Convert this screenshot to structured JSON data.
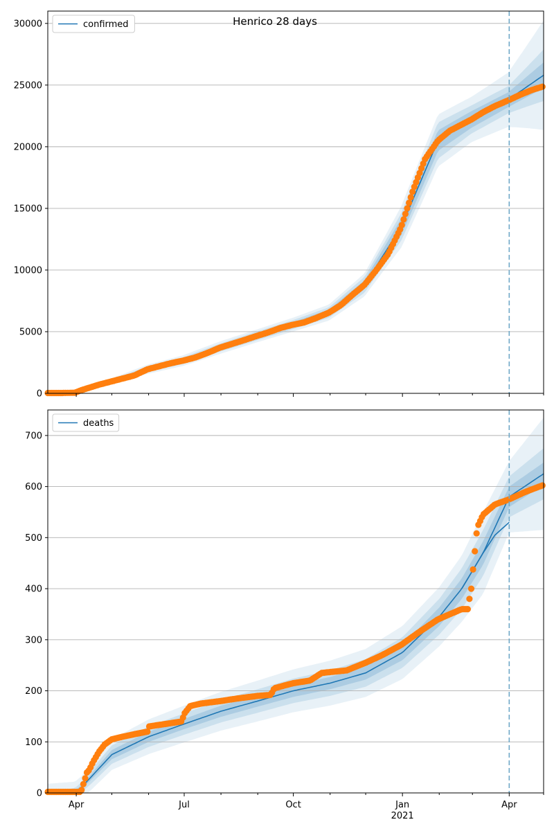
{
  "chart_data": [
    {
      "type": "line",
      "title": "Henrico 28 days",
      "legend": {
        "label": "confirmed",
        "placement": "top-left"
      },
      "xlabel": "",
      "ylabel": "",
      "x_range": [
        "2020-03-08",
        "2021-04-30"
      ],
      "ylim": [
        0,
        31000
      ],
      "yticks": [
        0,
        5000,
        10000,
        15000,
        20000,
        25000,
        30000
      ],
      "grid": "horizontal",
      "forecast_start": "2021-04-01",
      "colors": {
        "model": "#1f77b4",
        "observed": "#ff7f0e",
        "band": "#1f77b4"
      },
      "observed": {
        "dates": [
          "2020-03-08",
          "2020-03-20",
          "2020-03-31",
          "2020-04-05",
          "2020-04-10",
          "2020-04-15",
          "2020-04-20",
          "2020-04-30",
          "2020-05-10",
          "2020-05-20",
          "2020-05-31",
          "2020-06-10",
          "2020-06-20",
          "2020-06-30",
          "2020-07-10",
          "2020-07-20",
          "2020-07-31",
          "2020-08-10",
          "2020-08-20",
          "2020-08-31",
          "2020-09-10",
          "2020-09-20",
          "2020-09-30",
          "2020-10-10",
          "2020-10-20",
          "2020-10-31",
          "2020-11-10",
          "2020-11-20",
          "2020-11-30",
          "2020-12-10",
          "2020-12-20",
          "2020-12-31",
          "2021-01-10",
          "2021-01-20",
          "2021-01-31",
          "2021-02-10",
          "2021-02-20",
          "2021-02-28",
          "2021-03-10",
          "2021-03-20",
          "2021-03-31",
          "2021-04-10",
          "2021-04-20",
          "2021-04-30"
        ],
        "values": [
          30,
          30,
          50,
          250,
          400,
          550,
          700,
          950,
          1200,
          1450,
          1950,
          2200,
          2450,
          2650,
          2900,
          3250,
          3700,
          4000,
          4300,
          4650,
          4950,
          5300,
          5550,
          5750,
          6100,
          6550,
          7150,
          8000,
          8800,
          10000,
          11300,
          13500,
          16500,
          19000,
          20500,
          21300,
          21800,
          22200,
          22800,
          23300,
          23750,
          24200,
          24600,
          24900
        ]
      },
      "model": {
        "dates": [
          "2020-03-08",
          "2020-03-31",
          "2020-04-15",
          "2020-04-30",
          "2020-05-31",
          "2020-06-30",
          "2020-07-31",
          "2020-08-31",
          "2020-09-30",
          "2020-10-31",
          "2020-11-30",
          "2020-12-31",
          "2021-01-31",
          "2021-02-28",
          "2021-03-31",
          "2021-04-30"
        ],
        "values": [
          0,
          50,
          550,
          950,
          1950,
          2650,
          3700,
          4650,
          5550,
          6550,
          8800,
          13500,
          20500,
          22200,
          23800,
          25800
        ]
      },
      "bands": {
        "dates": [
          "2020-03-08",
          "2020-03-31",
          "2020-04-15",
          "2020-04-30",
          "2020-05-31",
          "2020-06-30",
          "2020-07-31",
          "2020-08-31",
          "2020-09-30",
          "2020-10-31",
          "2020-11-30",
          "2020-12-31",
          "2021-01-31",
          "2021-02-28",
          "2021-03-31",
          "2021-04-30"
        ],
        "inner": [
          0,
          0.03,
          0.06,
          0.06,
          0.05,
          0.05,
          0.05,
          0.04,
          0.035,
          0.035,
          0.04,
          0.05,
          0.04,
          0.03,
          0.025,
          0.04
        ],
        "middle": [
          0,
          0.06,
          0.12,
          0.11,
          0.1,
          0.09,
          0.08,
          0.07,
          0.06,
          0.06,
          0.07,
          0.08,
          0.07,
          0.05,
          0.045,
          0.08
        ],
        "outer": [
          0,
          0.1,
          0.2,
          0.18,
          0.16,
          0.14,
          0.12,
          0.1,
          0.09,
          0.09,
          0.1,
          0.12,
          0.1,
          0.08,
          0.09,
          0.17
        ]
      }
    },
    {
      "type": "line",
      "title": "",
      "legend": {
        "label": "deaths",
        "placement": "top-left"
      },
      "xlabel": "",
      "ylabel": "",
      "x_range": [
        "2020-03-08",
        "2021-04-30"
      ],
      "ylim": [
        0,
        750
      ],
      "yticks": [
        0,
        100,
        200,
        300,
        400,
        500,
        600,
        700
      ],
      "xticks": [
        "Apr",
        "Jul",
        "Oct",
        "Jan",
        "Apr"
      ],
      "xtick_dates": [
        "2020-04-01",
        "2020-07-01",
        "2020-10-01",
        "2021-01-01",
        "2021-04-01"
      ],
      "xsublabel": "2021",
      "grid": "horizontal",
      "forecast_start": "2021-04-01",
      "colors": {
        "model": "#1f77b4",
        "observed": "#ff7f0e",
        "band": "#1f77b4"
      },
      "observed": {
        "dates": [
          "2020-03-08",
          "2020-03-20",
          "2020-04-05",
          "2020-04-10",
          "2020-04-12",
          "2020-04-15",
          "2020-04-20",
          "2020-04-25",
          "2020-05-01",
          "2020-05-10",
          "2020-05-20",
          "2020-05-31",
          "2020-06-01",
          "2020-06-15",
          "2020-06-29",
          "2020-07-01",
          "2020-07-06",
          "2020-07-15",
          "2020-08-01",
          "2020-08-15",
          "2020-09-01",
          "2020-09-12",
          "2020-09-15",
          "2020-10-01",
          "2020-10-15",
          "2020-10-25",
          "2020-11-15",
          "2020-12-01",
          "2020-12-15",
          "2020-12-31",
          "2021-01-15",
          "2021-01-31",
          "2021-02-15",
          "2021-02-20",
          "2021-02-25",
          "2021-02-28",
          "2021-03-02",
          "2021-03-05",
          "2021-03-10",
          "2021-03-20",
          "2021-04-01",
          "2021-04-15",
          "2021-04-30"
        ],
        "values": [
          2,
          2,
          2,
          40,
          45,
          60,
          80,
          95,
          105,
          110,
          115,
          120,
          130,
          135,
          140,
          155,
          170,
          175,
          180,
          185,
          190,
          192,
          205,
          215,
          220,
          235,
          240,
          255,
          270,
          290,
          315,
          340,
          355,
          360,
          360,
          400,
          450,
          520,
          545,
          565,
          575,
          590,
          603
        ]
      },
      "model": {
        "dates": [
          "2020-03-08",
          "2020-03-31",
          "2020-04-05",
          "2020-04-15",
          "2020-05-01",
          "2020-06-01",
          "2020-07-01",
          "2020-08-01",
          "2020-09-01",
          "2020-10-01",
          "2020-11-01",
          "2020-12-01",
          "2021-01-01",
          "2021-02-01",
          "2021-02-20",
          "2021-03-10",
          "2021-04-01",
          "2021-04-30"
        ],
        "values": [
          0,
          2,
          10,
          35,
          75,
          110,
          135,
          160,
          180,
          200,
          215,
          235,
          275,
          345,
          400,
          470,
          580,
          625
        ]
      },
      "model_past": {
        "dates": [
          "2021-02-20",
          "2021-03-10",
          "2021-03-20",
          "2021-04-01"
        ],
        "values": [
          400,
          470,
          505,
          530
        ]
      },
      "bands": {
        "dates": [
          "2020-03-08",
          "2020-03-31",
          "2020-04-05",
          "2020-04-15",
          "2020-05-01",
          "2020-06-01",
          "2020-07-01",
          "2020-08-01",
          "2020-09-01",
          "2020-10-01",
          "2020-11-01",
          "2020-12-01",
          "2021-01-01",
          "2021-02-01",
          "2021-02-20",
          "2021-03-10",
          "2021-04-01",
          "2021-04-30"
        ],
        "inner": [
          0,
          3,
          4,
          6,
          9,
          10,
          10,
          11,
          11,
          12,
          12,
          13,
          15,
          18,
          20,
          23,
          20,
          22
        ],
        "middle": [
          0,
          8,
          10,
          14,
          18,
          20,
          21,
          22,
          23,
          24,
          25,
          27,
          30,
          35,
          40,
          45,
          40,
          50
        ],
        "outer": [
          18,
          20,
          22,
          26,
          30,
          34,
          36,
          38,
          40,
          42,
          44,
          47,
          52,
          58,
          65,
          80,
          70,
          110
        ]
      }
    }
  ]
}
